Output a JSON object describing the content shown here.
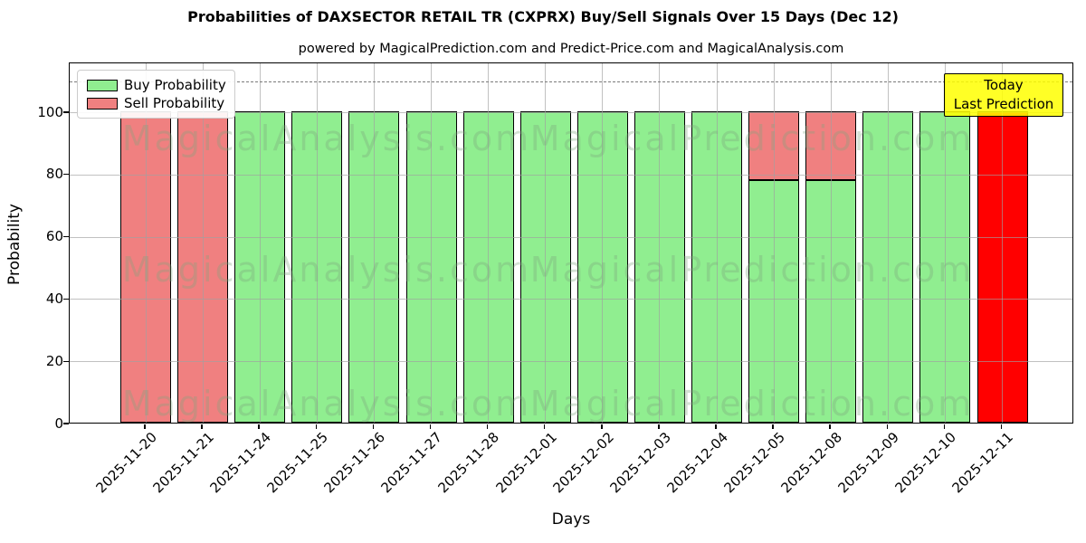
{
  "chart_data": {
    "type": "bar",
    "stacked": true,
    "title": "Probabilities of DAXSECTOR RETAIL TR (CXPRX) Buy/Sell Signals Over 15 Days (Dec 12)",
    "subtitle": "powered by MagicalPrediction.com and Predict-Price.com and MagicalAnalysis.com",
    "xlabel": "Days",
    "ylabel": "Probability",
    "ylim": [
      0,
      116
    ],
    "yticks": [
      0,
      20,
      40,
      60,
      80,
      100
    ],
    "grid": true,
    "legend_position": "upper left",
    "dashed_line_y": 110,
    "categories": [
      "2025-11-20",
      "2025-11-21",
      "2025-11-24",
      "2025-11-25",
      "2025-11-26",
      "2025-11-27",
      "2025-11-28",
      "2025-12-01",
      "2025-12-02",
      "2025-12-03",
      "2025-12-04",
      "2025-12-05",
      "2025-12-08",
      "2025-12-09",
      "2025-12-10",
      "2025-12-11"
    ],
    "series": [
      {
        "name": "Buy Probability",
        "color": "#90EE90",
        "values": [
          0,
          0,
          100,
          100,
          100,
          100,
          100,
          100,
          100,
          100,
          100,
          78,
          78,
          100,
          100,
          0
        ]
      },
      {
        "name": "Sell Probability",
        "color": "#F08080",
        "values": [
          100,
          100,
          0,
          0,
          0,
          0,
          0,
          0,
          0,
          0,
          0,
          22,
          22,
          0,
          0,
          100
        ]
      }
    ],
    "bar_edge_color": "#000000",
    "today_highlight": {
      "index": 15,
      "color": "#FF0000"
    },
    "annotation": {
      "lines": [
        "Today",
        "Last Prediction"
      ],
      "bg": "#FFFF00"
    },
    "watermarks": [
      "MagicalAnalysis.com",
      "MagicalPrediction.com"
    ]
  }
}
